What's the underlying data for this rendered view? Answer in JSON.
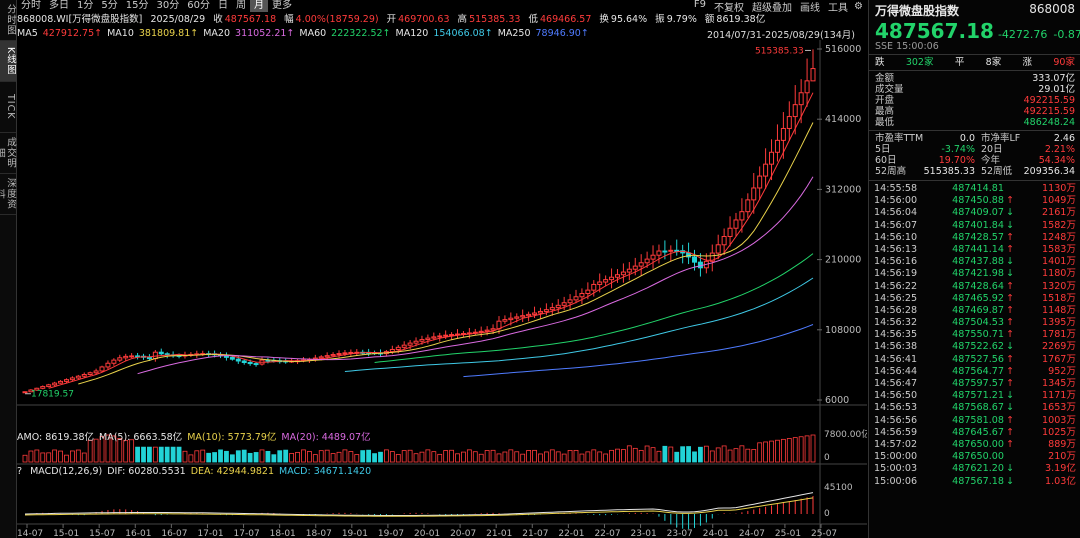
{
  "left_toolbar": [
    {
      "label": "分时图",
      "active": false
    },
    {
      "label": "K线图",
      "active": true
    },
    {
      "label": "TICK",
      "active": false
    },
    {
      "label": "成交明细",
      "active": false
    },
    {
      "label": "深度资料",
      "active": false
    }
  ],
  "top_toolbar": {
    "periods": [
      "分时",
      "多日",
      "1分",
      "5分",
      "15分",
      "30分",
      "60分",
      "日",
      "周",
      "月",
      "更多"
    ],
    "active_period": "月",
    "right_items": [
      "F9",
      "不复权",
      "超级叠加",
      "画线",
      "工具"
    ],
    "settings_icon": "gear-icon"
  },
  "quote_line": {
    "code": "868008.WI[万得微盘股指数]",
    "date": "2025/08/29",
    "close_label": "收",
    "close": "487567.18",
    "chg_label": "幅",
    "chg": "4.00%(18759.29)",
    "open_label": "开",
    "open": "469700.63",
    "high_label": "高",
    "high": "515385.33",
    "low_label": "低",
    "low": "469466.57",
    "turnover_label": "换",
    "turnover": "95.64%",
    "amp_label": "振",
    "amp": "9.79%",
    "amt_label": "额",
    "amt": "8619.38亿"
  },
  "ma_line": [
    {
      "text": "MA5",
      "color": "#e6e6e6"
    },
    {
      "text": "427912.75↑",
      "color": "#ff3b3b"
    },
    {
      "text": "MA10",
      "color": "#e6e6e6"
    },
    {
      "text": "381809.81↑",
      "color": "#e9d24b"
    },
    {
      "text": "MA20",
      "color": "#e6e6e6"
    },
    {
      "text": "311052.21↑",
      "color": "#d96ae0"
    },
    {
      "text": "MA60",
      "color": "#e6e6e6"
    },
    {
      "text": "222322.52↑",
      "color": "#22d36a"
    },
    {
      "text": "MA120",
      "color": "#e6e6e6"
    },
    {
      "text": "154066.08↑",
      "color": "#3fc9e6"
    },
    {
      "text": "MA250",
      "color": "#e6e6e6"
    },
    {
      "text": "78946.90↑",
      "color": "#4f7bff"
    }
  ],
  "range_label": "2014/07/31-2025/08/29(134月)",
  "chart_data": [
    {
      "type": "candlestick",
      "title": "",
      "y_ticks": [
        "516000",
        "414000",
        "312000",
        "210000",
        "108000",
        "6000"
      ],
      "y_tick_values": [
        516000,
        414000,
        312000,
        210000,
        108000,
        6000
      ],
      "ylim": [
        6000,
        516000
      ],
      "x_ticks": [
        "14-07",
        "15-01",
        "15-07",
        "16-01",
        "16-07",
        "17-01",
        "17-07",
        "18-01",
        "18-07",
        "19-01",
        "19-07",
        "20-01",
        "20-07",
        "21-01",
        "21-07",
        "22-01",
        "22-07",
        "23-01",
        "23-07",
        "24-01",
        "24-07",
        "25-01",
        "25-07"
      ],
      "high_marker": "515385.33",
      "low_marker": "17819.57",
      "candles_count": 134,
      "last": {
        "open": 469700.63,
        "high": 515385.33,
        "low": 469466.57,
        "close": 487567.18
      }
    },
    {
      "type": "bar",
      "title": "AMO",
      "legend": [
        {
          "text": "AMO: 8619.38亿",
          "color": "#e6e6e6"
        },
        {
          "text": "MA(5): 6663.58亿",
          "color": "#e6e6e6"
        },
        {
          "text": "MA(10): 5773.79亿",
          "color": "#e9d24b"
        },
        {
          "text": "MA(20): 4489.07亿",
          "color": "#d96ae0"
        }
      ],
      "y_ticks": [
        "7800.00亿",
        "0"
      ]
    },
    {
      "type": "bar",
      "title": "MACD",
      "legend": [
        {
          "text": "? ",
          "color": "#e6e6e6"
        },
        {
          "text": "MACD(12,26,9)",
          "color": "#e6e6e6"
        },
        {
          "text": "DIF: 60280.5531",
          "color": "#e6e6e6"
        },
        {
          "text": "DEA: 42944.9821",
          "color": "#e9d24b"
        },
        {
          "text": "MACD: 34671.1420",
          "color": "#3fc9e6"
        }
      ],
      "y_ticks": [
        "45100",
        "0"
      ]
    }
  ],
  "right_panel": {
    "name": "万得微盘股指数",
    "code": "868008",
    "price": "487567.18",
    "change": "-4272.76",
    "pct": "-0.87%",
    "market_time": "SSE 15:00:06",
    "breadth": {
      "down_label": "跌",
      "down": "302家",
      "flat_label": "平",
      "flat": "8家",
      "up_label": "涨",
      "up": "90家"
    },
    "stats": [
      {
        "label": "金额",
        "value": "333.07亿",
        "color": "#e6e6e6"
      },
      {
        "label": "成交量",
        "value": "29.01亿",
        "color": "#e6e6e6"
      },
      {
        "label": "开盘",
        "value": "492215.59",
        "color": "#ff3b3b"
      },
      {
        "label": "最高",
        "value": "492215.59",
        "color": "#ff3b3b"
      },
      {
        "label": "最低",
        "value": "486248.24",
        "color": "#22d36a"
      }
    ],
    "ratios": [
      {
        "l1": "市盈率TTM",
        "v1": "0.0",
        "c1": "#e6e6e6",
        "l2": "市净率LF",
        "v2": "2.46",
        "c2": "#e6e6e6"
      },
      {
        "l1": "5日",
        "v1": "-3.74%",
        "c1": "#22d36a",
        "l2": "20日",
        "v2": "2.21%",
        "c2": "#ff3b3b"
      },
      {
        "l1": "60日",
        "v1": "19.70%",
        "c1": "#ff3b3b",
        "l2": "今年",
        "v2": "54.34%",
        "c2": "#ff3b3b"
      },
      {
        "l1": "52周高",
        "v1": "515385.33",
        "c1": "#e6e6e6",
        "l2": "52周低",
        "v2": "209356.34",
        "c2": "#e6e6e6"
      }
    ],
    "ticks": [
      {
        "time": "14:55:58",
        "price": "487414.81",
        "arrow": "",
        "vol": "1130万",
        "vc": "#ff3b3b"
      },
      {
        "time": "14:56:00",
        "price": "487450.88",
        "arrow": "↑",
        "vol": "1049万",
        "vc": "#ff3b3b"
      },
      {
        "time": "14:56:04",
        "price": "487409.07",
        "arrow": "↓",
        "vol": "2161万",
        "vc": "#ff3b3b"
      },
      {
        "time": "14:56:07",
        "price": "487401.84",
        "arrow": "↓",
        "vol": "1582万",
        "vc": "#ff3b3b"
      },
      {
        "time": "14:56:10",
        "price": "487428.57",
        "arrow": "↑",
        "vol": "1248万",
        "vc": "#ff3b3b"
      },
      {
        "time": "14:56:13",
        "price": "487441.14",
        "arrow": "↑",
        "vol": "1583万",
        "vc": "#ff3b3b"
      },
      {
        "time": "14:56:16",
        "price": "487437.88",
        "arrow": "↓",
        "vol": "1401万",
        "vc": "#ff3b3b"
      },
      {
        "time": "14:56:19",
        "price": "487421.98",
        "arrow": "↓",
        "vol": "1180万",
        "vc": "#ff3b3b"
      },
      {
        "time": "14:56:22",
        "price": "487428.64",
        "arrow": "↑",
        "vol": "1320万",
        "vc": "#ff3b3b"
      },
      {
        "time": "14:56:25",
        "price": "487465.92",
        "arrow": "↑",
        "vol": "1518万",
        "vc": "#ff3b3b"
      },
      {
        "time": "14:56:28",
        "price": "487469.87",
        "arrow": "↑",
        "vol": "1148万",
        "vc": "#ff3b3b"
      },
      {
        "time": "14:56:32",
        "price": "487504.53",
        "arrow": "↑",
        "vol": "1395万",
        "vc": "#ff3b3b"
      },
      {
        "time": "14:56:35",
        "price": "487550.71",
        "arrow": "↑",
        "vol": "1781万",
        "vc": "#ff3b3b"
      },
      {
        "time": "14:56:38",
        "price": "487522.62",
        "arrow": "↓",
        "vol": "2269万",
        "vc": "#ff3b3b"
      },
      {
        "time": "14:56:41",
        "price": "487527.56",
        "arrow": "↑",
        "vol": "1767万",
        "vc": "#ff3b3b"
      },
      {
        "time": "14:56:44",
        "price": "487564.77",
        "arrow": "↑",
        "vol": "952万",
        "vc": "#ff3b3b"
      },
      {
        "time": "14:56:47",
        "price": "487597.57",
        "arrow": "↑",
        "vol": "1345万",
        "vc": "#ff3b3b"
      },
      {
        "time": "14:56:50",
        "price": "487571.21",
        "arrow": "↓",
        "vol": "1171万",
        "vc": "#ff3b3b"
      },
      {
        "time": "14:56:53",
        "price": "487568.67",
        "arrow": "↓",
        "vol": "1653万",
        "vc": "#ff3b3b"
      },
      {
        "time": "14:56:56",
        "price": "487581.08",
        "arrow": "↑",
        "vol": "1003万",
        "vc": "#ff3b3b"
      },
      {
        "time": "14:56:59",
        "price": "487645.67",
        "arrow": "↑",
        "vol": "1025万",
        "vc": "#ff3b3b"
      },
      {
        "time": "14:57:02",
        "price": "487650.00",
        "arrow": "↑",
        "vol": "889万",
        "vc": "#ff3b3b"
      },
      {
        "time": "15:00:00",
        "price": "487650.00",
        "arrow": "",
        "vol": "210万",
        "vc": "#ff3b3b"
      },
      {
        "time": "15:00:03",
        "price": "487621.20",
        "arrow": "↓",
        "vol": "3.19亿",
        "vc": "#ff3b3b"
      },
      {
        "time": "15:00:06",
        "price": "487567.18",
        "arrow": "↓",
        "vol": "1.03亿",
        "vc": "#ff3b3b"
      }
    ]
  }
}
